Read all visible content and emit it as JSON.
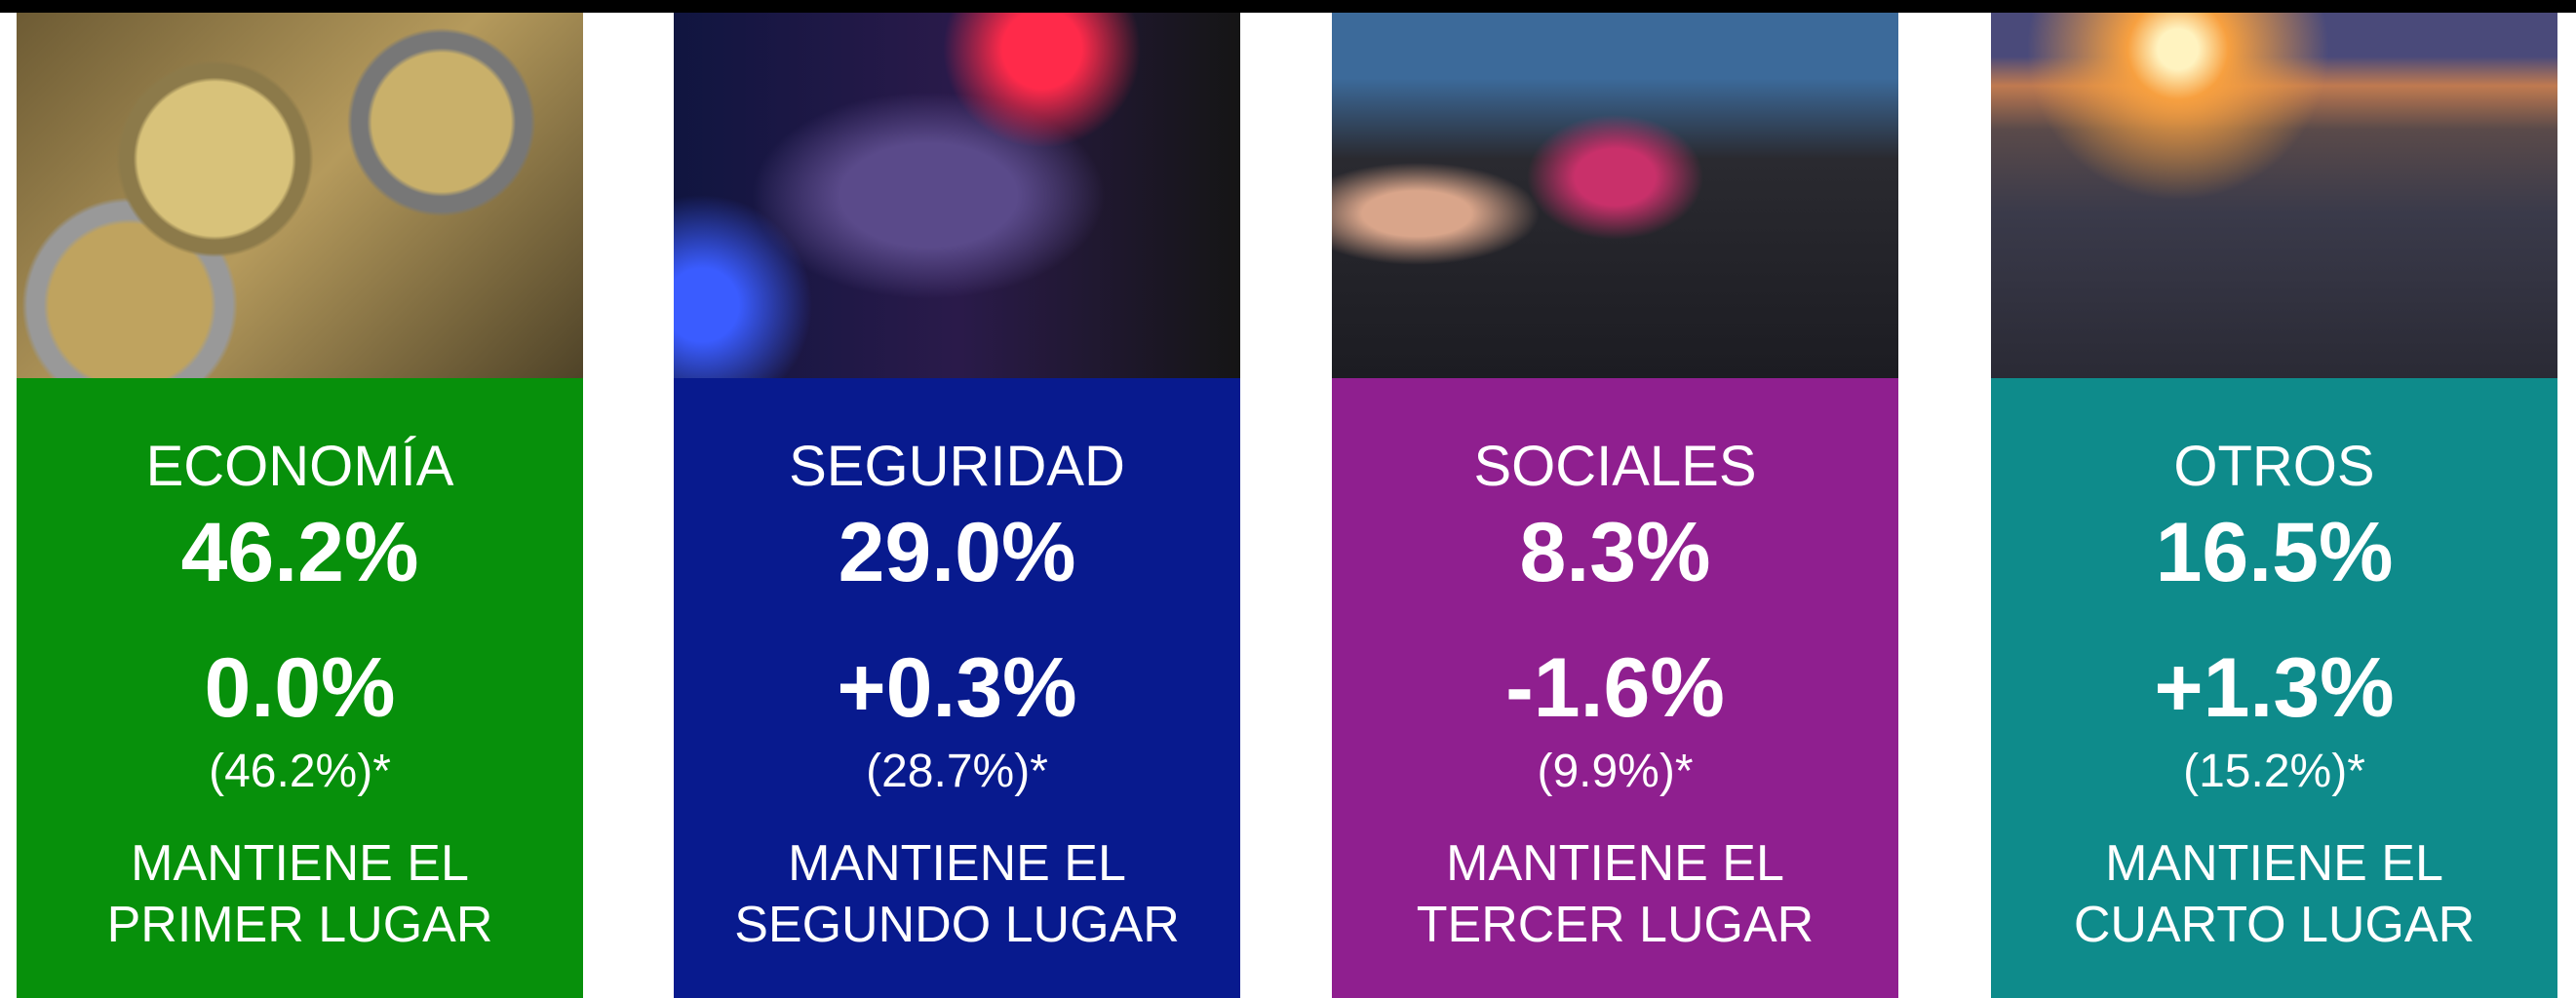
{
  "cards": [
    {
      "category": "ECONOMÍA",
      "share": "46.2%",
      "change": "0.0%",
      "previous": "(46.2%)*",
      "status": [
        "MANTIENE EL",
        "PRIMER LUGAR"
      ],
      "color": "#07900b"
    },
    {
      "category": "SEGURIDAD",
      "share": "29.0%",
      "change": "+0.3%",
      "previous": "(28.7%)*",
      "status": [
        "MANTIENE EL",
        "SEGUNDO LUGAR"
      ],
      "color": "#081a8e"
    },
    {
      "category": "SOCIALES",
      "share": "8.3%",
      "change": "-1.6%",
      "previous": "(9.9%)*",
      "status": [
        "MANTIENE EL",
        "TERCER LUGAR"
      ],
      "color": "#8f1f8f"
    },
    {
      "category": "OTROS",
      "share": "16.5%",
      "change": "+1.3%",
      "previous": "(15.2%)*",
      "status": [
        "MANTIENE EL",
        "CUARTO LUGAR"
      ],
      "color": "#0e8b8b"
    }
  ]
}
